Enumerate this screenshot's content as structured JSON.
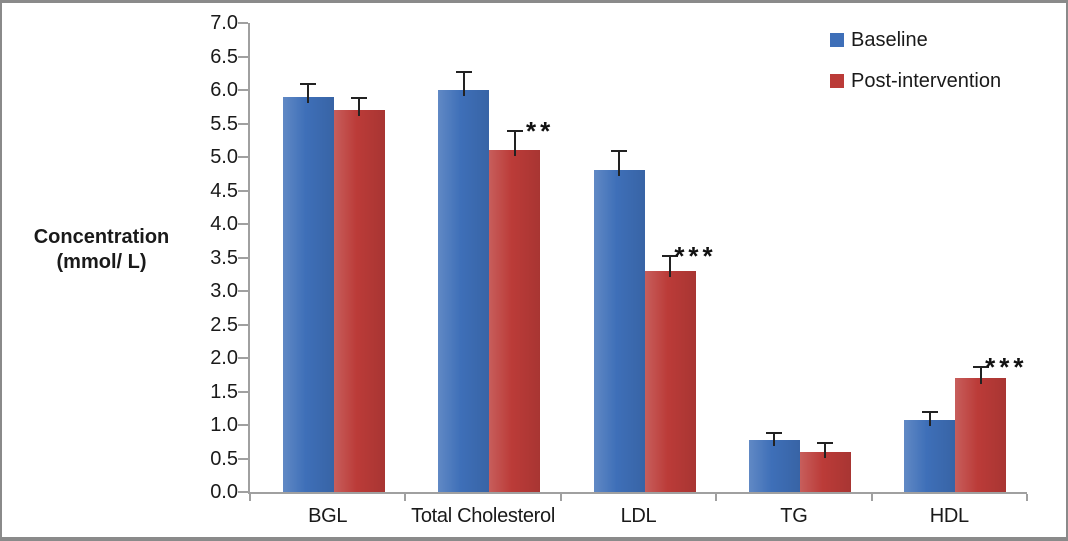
{
  "chart_data": {
    "type": "bar",
    "title": "",
    "ylabel_line1": "Concentration",
    "ylabel_line2": "(mmol/ L)",
    "categories": [
      "BGL",
      "Total Cholesterol",
      "LDL",
      "TG",
      "HDL"
    ],
    "series": [
      {
        "name": "Baseline",
        "color": "#3E6FB8",
        "values": [
          5.9,
          6.0,
          4.8,
          0.78,
          1.07
        ],
        "errors": [
          0.17,
          0.25,
          0.27,
          0.08,
          0.11
        ]
      },
      {
        "name": "Post-intervention",
        "color": "#BB3B38",
        "values": [
          5.7,
          5.1,
          3.3,
          0.6,
          1.7
        ],
        "errors": [
          0.17,
          0.27,
          0.21,
          0.12,
          0.15
        ]
      }
    ],
    "significance": [
      "",
      "**",
      "***",
      "",
      "***"
    ],
    "ylim": [
      0,
      7
    ],
    "ytick_step": 0.5,
    "yticks": [
      "0.0",
      "0.5",
      "1.0",
      "1.5",
      "2.0",
      "2.5",
      "3.0",
      "3.5",
      "4.0",
      "4.5",
      "5.0",
      "5.5",
      "6.0",
      "6.5",
      "7.0"
    ],
    "grid": false,
    "legend_position": "top-right",
    "error_bars": true
  },
  "colors": {
    "baseline_bar": "#3E6FB8",
    "post_intervention_bar": "#BB3B38",
    "axis": "#A0A0A0",
    "text": "#1A1A1A",
    "error_bar": "#222222",
    "frame_border": "#8A8A8A",
    "background": "#FFFFFF"
  }
}
